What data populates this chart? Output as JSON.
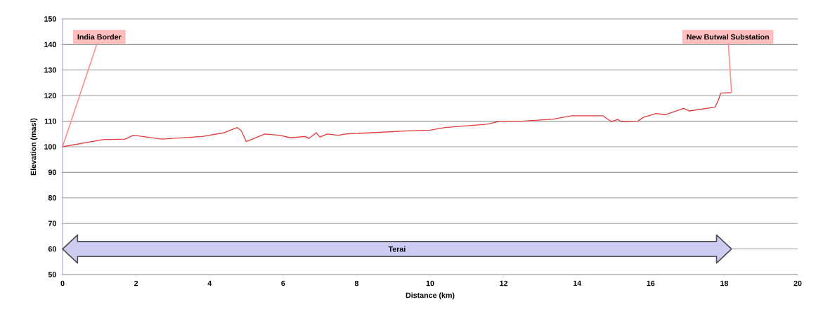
{
  "chart_data": {
    "type": "line",
    "xlabel": "Distance (km)",
    "ylabel": "Elevation (masl)",
    "x": [
      0,
      1.1,
      1.7,
      1.93,
      2.7,
      3.8,
      4.4,
      4.75,
      4.86,
      5.0,
      5.5,
      5.9,
      6.2,
      6.6,
      6.7,
      6.9,
      7.0,
      7.2,
      7.5,
      7.7,
      9.5,
      10.0,
      10.4,
      11.55,
      11.9,
      12.5,
      13.35,
      13.85,
      14.7,
      14.93,
      15.1,
      15.2,
      15.65,
      15.8,
      16.15,
      16.4,
      16.8,
      16.9,
      17.05,
      17.75,
      17.85,
      17.9,
      18.2
    ],
    "series": [
      {
        "color": "#e03c3c",
        "values": [
          100,
          102.8,
          103,
          104.5,
          103,
          104,
          105.5,
          107.5,
          106.3,
          102,
          105,
          104.5,
          103.5,
          104,
          103.2,
          105.5,
          103.8,
          105,
          104.5,
          105,
          106.3,
          106.5,
          107.5,
          108.8,
          110,
          110,
          110.8,
          112.1,
          112.1,
          109.8,
          110.7,
          109.8,
          110,
          111.5,
          113,
          112.5,
          114.5,
          115,
          114,
          115.5,
          118.5,
          121,
          121.2
        ]
      }
    ],
    "xlim": [
      0,
      20
    ],
    "xticks": [
      0,
      2,
      4,
      6,
      8,
      10,
      12,
      14,
      16,
      18,
      20
    ],
    "ylim": [
      50,
      150
    ],
    "yticks": [
      50,
      60,
      70,
      80,
      90,
      100,
      110,
      120,
      130,
      140,
      150
    ],
    "grid": "y",
    "marker": "none",
    "line_style": "solid",
    "annotations": [
      {
        "text": "India Border",
        "x": 0,
        "y": 100
      },
      {
        "text": "New Butwal Substation",
        "x": 18.2,
        "y": 121.2
      },
      "Terai"
    ]
  }
}
